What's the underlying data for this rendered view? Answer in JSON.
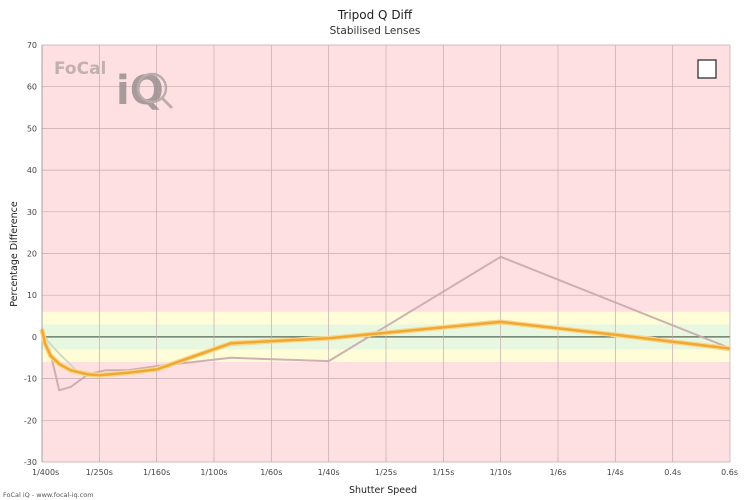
{
  "chart_data": {
    "type": "line",
    "title": "Tripod Q Diff",
    "subtitle": "Stabilised Lenses",
    "xlabel": "Shutter Speed",
    "ylabel": "Percentage Difference",
    "ylim": [
      -30,
      70
    ],
    "yticks": [
      -30,
      -20,
      -10,
      0,
      10,
      20,
      30,
      40,
      50,
      60,
      70
    ],
    "xticks": [
      "1/400s",
      "1/250s",
      "1/160s",
      "1/100s",
      "1/60s",
      "1/40s",
      "1/25s",
      "1/15s",
      "1/10s",
      "1/6s",
      "1/4s",
      "0.4s",
      "0.6s"
    ],
    "grid": true,
    "bands": [
      {
        "from": -6,
        "to": 6,
        "color": "#fffcd8"
      },
      {
        "from": -3,
        "to": 3,
        "color": "#e8f8e0"
      }
    ],
    "background_color": "#ffe0e2",
    "series": [
      {
        "color": "#c8a8ac",
        "x": [
          0,
          0.05,
          0.15,
          0.3,
          0.5,
          0.8,
          1.1,
          1.5,
          2,
          3.3,
          5,
          8,
          12
        ],
        "values": [
          2,
          -2,
          -4,
          -12.8,
          -12,
          -9,
          -8,
          -8,
          -7,
          -5,
          -5.8,
          19.2,
          -2.7
        ]
      },
      {
        "color": "#ccd8c0",
        "x": [
          0,
          0.1,
          0.3,
          0.6,
          1,
          1.5,
          2,
          3.3,
          5,
          8,
          10,
          12
        ],
        "values": [
          1,
          -1,
          -4,
          -8,
          -9,
          -8.5,
          -7.5,
          -2,
          -0.5,
          3.2,
          0.5,
          -3.2
        ]
      },
      {
        "color": "#f0a830",
        "x": [
          0,
          0.05,
          0.15,
          0.3,
          0.5,
          0.8,
          1,
          1.5,
          2,
          3.3,
          5,
          8,
          10,
          12
        ],
        "values": [
          1.8,
          -1.5,
          -4.5,
          -6.5,
          -8,
          -9,
          -9.2,
          -8.6,
          -7.8,
          -1.5,
          -0.3,
          3.6,
          0.5,
          -2.8
        ]
      }
    ],
    "legend_box": true
  },
  "logo": {
    "brand": "FoCal",
    "product": "iQ"
  },
  "credit": "FoCal iQ - www.focal-iq.com"
}
